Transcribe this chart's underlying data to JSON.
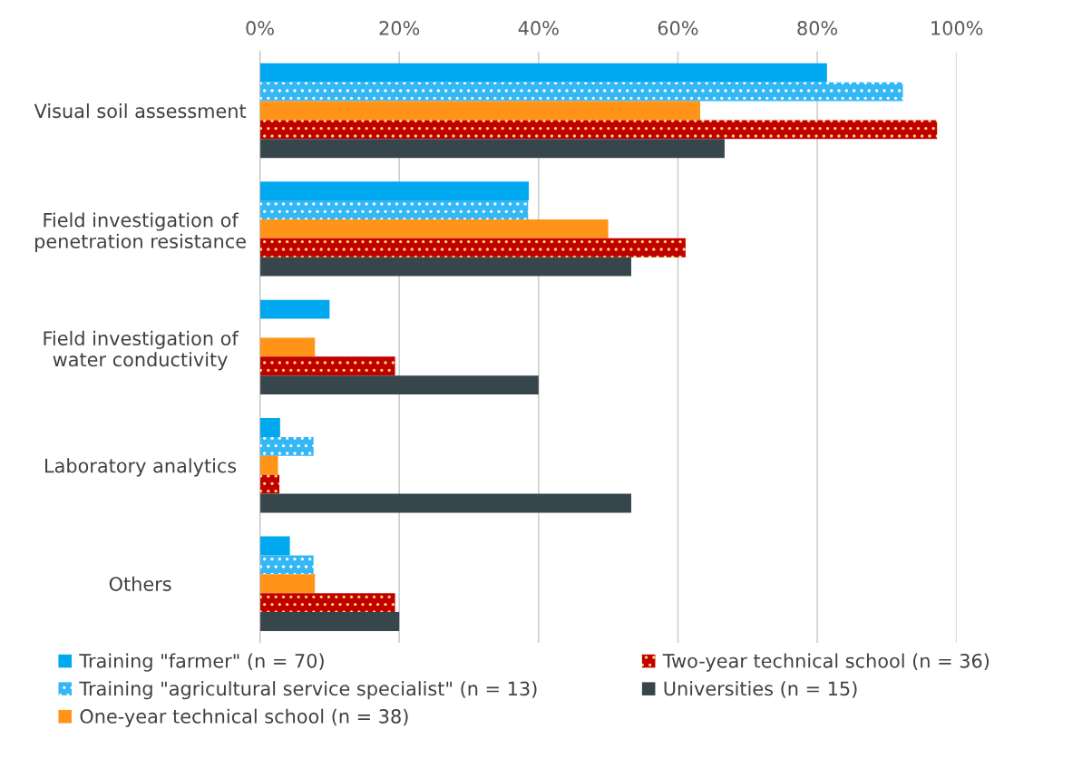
{
  "chart_data": {
    "type": "bar",
    "orientation": "horizontal",
    "categories": [
      "Visual soil assessment",
      "Field investigation of\npenetration resistance",
      "Field investigation of\nwater conductivity",
      "Laboratory analytics",
      "Others"
    ],
    "series": [
      {
        "name": "Training \"farmer\" (n = 70)",
        "color": "#00a8f0",
        "values": [
          81.4,
          38.6,
          10,
          2.9,
          4.3
        ]
      },
      {
        "name": "Training \"agricultural service specialist\" (n = 13)",
        "color": "#33b8f5",
        "values": [
          92.3,
          38.5,
          0,
          7.7,
          7.7
        ]
      },
      {
        "name": "One-year technical school (n = 38)",
        "color": "#ff9418",
        "values": [
          63.2,
          50,
          7.9,
          2.6,
          7.9
        ]
      },
      {
        "name": "Two-year technical school (n = 36)",
        "color": "#c00000",
        "values": [
          97.2,
          61.1,
          19.4,
          2.8,
          19.4
        ]
      },
      {
        "name": "Universities (n = 15)",
        "color": "#37464c",
        "values": [
          66.7,
          53.3,
          40,
          53.3,
          20
        ]
      }
    ],
    "xlim": [
      0,
      100
    ],
    "xticks": [
      {
        "value": 0,
        "label": "0%"
      },
      {
        "value": 20,
        "label": "20%"
      },
      {
        "value": 40,
        "label": "40%"
      },
      {
        "value": 60,
        "label": "60%"
      },
      {
        "value": 80,
        "label": "80%"
      },
      {
        "value": 100,
        "label": "100%"
      }
    ],
    "grid": "x",
    "legend": "bottom"
  }
}
